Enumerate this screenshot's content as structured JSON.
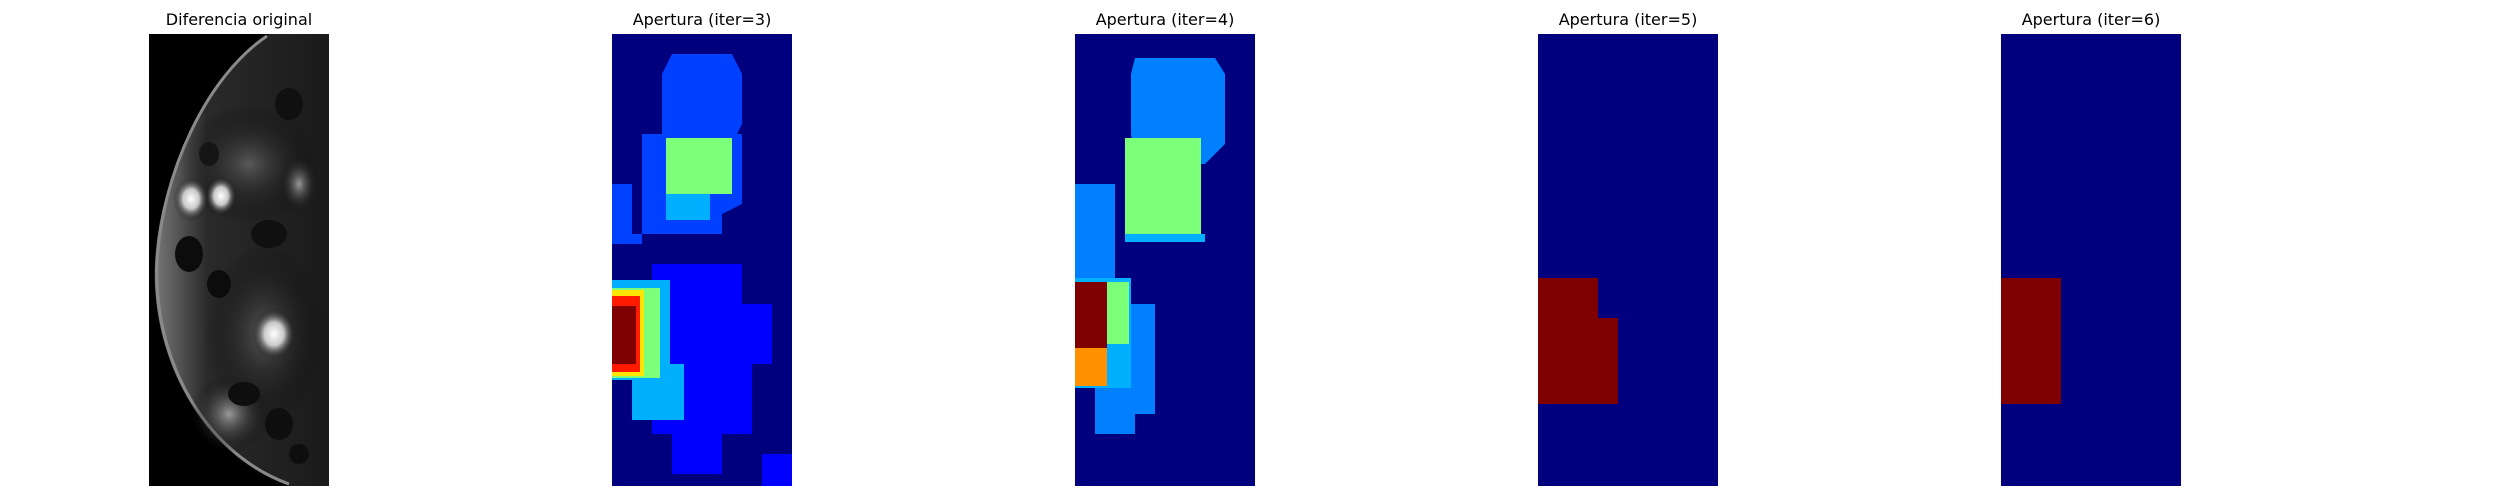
{
  "colors": {
    "jet_dark_blue": "#00007f",
    "jet_blue": "#0000ff",
    "jet_azure": "#0040ff",
    "jet_sky": "#0080ff",
    "jet_cyan": "#00b0ff",
    "jet_green": "#7cff79",
    "jet_yellow": "#ffe600",
    "jet_orange": "#ff9000",
    "jet_red": "#ff1a00",
    "jet_dark_red": "#7f0000"
  },
  "panels": [
    {
      "title": "Diferencia original",
      "type": "grayscale-image"
    },
    {
      "title": "Apertura (iter=3)",
      "type": "jet-colormap-image"
    },
    {
      "title": "Apertura (iter=4)",
      "type": "jet-colormap-image"
    },
    {
      "title": "Apertura (iter=5)",
      "type": "jet-colormap-image"
    },
    {
      "title": "Apertura (iter=6)",
      "type": "jet-colormap-image"
    }
  ]
}
